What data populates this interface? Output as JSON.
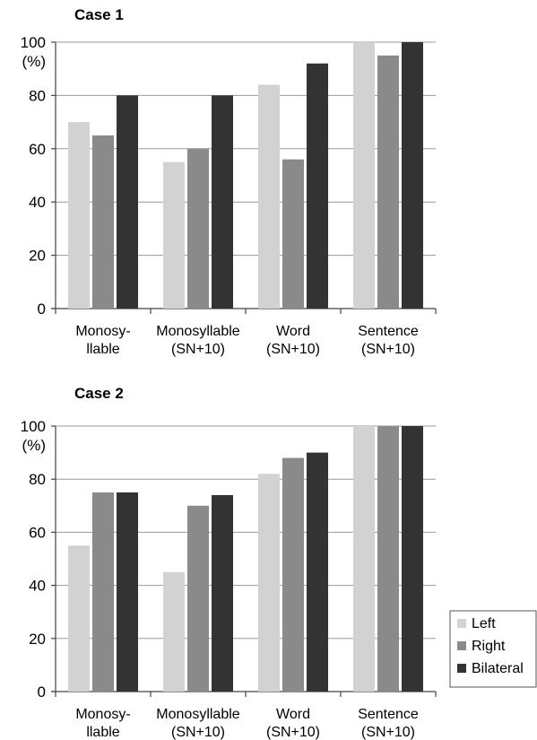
{
  "chart_data": [
    {
      "type": "bar",
      "title": "Case 1",
      "ylabel": "(%)",
      "ylim": [
        0,
        100
      ],
      "yticks": [
        0,
        20,
        40,
        60,
        80,
        100
      ],
      "grid": true,
      "categories": [
        [
          "Monosy-",
          "llable"
        ],
        [
          "Monosyllable",
          "(SN+10)"
        ],
        [
          "Word",
          "(SN+10)"
        ],
        [
          "Sentence",
          "(SN+10)"
        ]
      ],
      "series": [
        {
          "name": "Left",
          "color": "#d2d2d2",
          "values": [
            70,
            55,
            84,
            100
          ]
        },
        {
          "name": "Right",
          "color": "#8a8a8a",
          "values": [
            65,
            60,
            56,
            95
          ]
        },
        {
          "name": "Bilateral",
          "color": "#333333",
          "values": [
            80,
            80,
            92,
            100
          ]
        }
      ]
    },
    {
      "type": "bar",
      "title": "Case 2",
      "ylabel": "(%)",
      "ylim": [
        0,
        100
      ],
      "yticks": [
        0,
        20,
        40,
        60,
        80,
        100
      ],
      "grid": true,
      "categories": [
        [
          "Monosy-",
          "llable"
        ],
        [
          "Monosyllable",
          "(SN+10)"
        ],
        [
          "Word",
          "(SN+10)"
        ],
        [
          "Sentence",
          "(SN+10)"
        ]
      ],
      "series": [
        {
          "name": "Left",
          "color": "#d2d2d2",
          "values": [
            55,
            45,
            82,
            100
          ]
        },
        {
          "name": "Right",
          "color": "#8a8a8a",
          "values": [
            75,
            70,
            88,
            100
          ]
        },
        {
          "name": "Bilateral",
          "color": "#333333",
          "values": [
            75,
            74,
            90,
            100
          ]
        }
      ]
    }
  ],
  "legend": {
    "placement": "bottom-right",
    "items": [
      {
        "label": "Left",
        "color": "#d2d2d2"
      },
      {
        "label": "Right",
        "color": "#8a8a8a"
      },
      {
        "label": "Bilateral",
        "color": "#333333"
      }
    ]
  }
}
